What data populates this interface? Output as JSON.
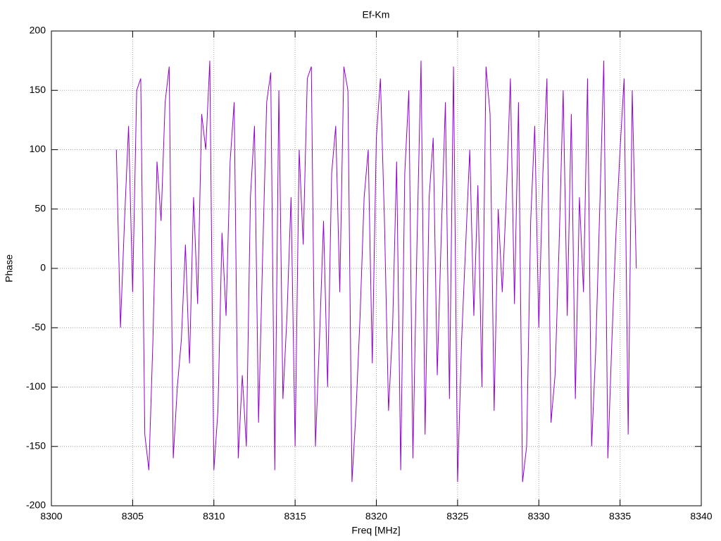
{
  "chart_data": {
    "type": "line",
    "title": "Ef-Km",
    "xlabel": "Freq [MHz]",
    "ylabel": "Phase",
    "x": [
      8304,
      8304.25,
      8304.5,
      8304.75,
      8305,
      8305.25,
      8305.5,
      8305.75,
      8306,
      8306.25,
      8306.5,
      8306.75,
      8307,
      8307.25,
      8307.5,
      8307.75,
      8308,
      8308.25,
      8308.5,
      8308.75,
      8309,
      8309.25,
      8309.5,
      8309.75,
      8310,
      8310.25,
      8310.5,
      8310.75,
      8311,
      8311.25,
      8311.5,
      8311.75,
      8312,
      8312.25,
      8312.5,
      8312.75,
      8313,
      8313.25,
      8313.5,
      8313.75,
      8314,
      8314.25,
      8314.5,
      8314.75,
      8315,
      8315.25,
      8315.5,
      8315.75,
      8316,
      8316.25,
      8316.5,
      8316.75,
      8317,
      8317.25,
      8317.5,
      8317.75,
      8318,
      8318.25,
      8318.5,
      8318.75,
      8319,
      8319.25,
      8319.5,
      8319.75,
      8320,
      8320.25,
      8320.5,
      8320.75,
      8321,
      8321.25,
      8321.5,
      8321.75,
      8322,
      8322.25,
      8322.5,
      8322.75,
      8323,
      8323.25,
      8323.5,
      8323.75,
      8324,
      8324.25,
      8324.5,
      8324.75,
      8325,
      8325.25,
      8325.5,
      8325.75,
      8326,
      8326.25,
      8326.5,
      8326.75,
      8327,
      8327.25,
      8327.5,
      8327.75,
      8328,
      8328.25,
      8328.5,
      8328.75,
      8329,
      8329.25,
      8329.5,
      8329.75,
      8330,
      8330.25,
      8330.5,
      8330.75,
      8331,
      8331.25,
      8331.5,
      8331.75,
      8332,
      8332.25,
      8332.5,
      8332.75,
      8333,
      8333.25,
      8333.5,
      8333.75,
      8334,
      8334.25,
      8334.5,
      8334.75,
      8335,
      8335.25,
      8335.5,
      8335.75,
      8336
    ],
    "series": [
      {
        "color": "#9400d3",
        "values": [
          100,
          -50,
          40,
          120,
          -20,
          150,
          160,
          -140,
          -170,
          -60,
          90,
          40,
          140,
          170,
          -160,
          -100,
          -60,
          20,
          -80,
          60,
          -30,
          130,
          100,
          175,
          -170,
          -120,
          30,
          -40,
          90,
          140,
          -160,
          -90,
          -150,
          60,
          120,
          -130,
          10,
          140,
          165,
          -170,
          150,
          -110,
          -40,
          60,
          -150,
          100,
          20,
          160,
          170,
          -150,
          -60,
          40,
          -100,
          80,
          120,
          -20,
          170,
          150,
          -180,
          -120,
          -40,
          60,
          100,
          -80,
          110,
          160,
          40,
          -120,
          -50,
          90,
          -170,
          80,
          150,
          -160,
          20,
          175,
          -140,
          60,
          110,
          -90,
          30,
          140,
          -110,
          170,
          -180,
          -60,
          20,
          100,
          -40,
          70,
          -100,
          170,
          130,
          -120,
          50,
          -20,
          60,
          160,
          -30,
          140,
          -180,
          -150,
          40,
          120,
          -50,
          80,
          160,
          -130,
          -90,
          20,
          150,
          -40,
          130,
          -110,
          60,
          -20,
          160,
          -150,
          -70,
          50,
          175,
          -160,
          -60,
          30,
          100,
          160,
          -140,
          150,
          0
        ]
      }
    ],
    "xlim": [
      8300,
      8340
    ],
    "xticks": [
      8300,
      8305,
      8310,
      8315,
      8320,
      8325,
      8330,
      8335,
      8340
    ],
    "ylim": [
      -200,
      200
    ],
    "yticks": [
      -200,
      -150,
      -100,
      -50,
      0,
      50,
      100,
      150,
      200
    ],
    "grid": true
  }
}
